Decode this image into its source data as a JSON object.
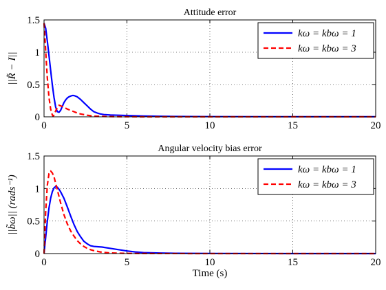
{
  "chart_data": [
    {
      "type": "line",
      "title": "Attitude error",
      "xlabel": "",
      "ylabel": "||R̃ − I||",
      "xlim": [
        0,
        20
      ],
      "ylim": [
        0,
        1.5
      ],
      "xticks": [
        "0",
        "5",
        "10",
        "15",
        "20"
      ],
      "yticks": [
        "0",
        "0.5",
        "1",
        "1.5"
      ],
      "grid": true,
      "legend_position": "top-right",
      "series": [
        {
          "name": "kω = kbω = 1",
          "color": "#0000ff",
          "dash": "solid",
          "x": [
            0,
            0.1,
            0.2,
            0.3,
            0.4,
            0.5,
            0.6,
            0.7,
            0.8,
            0.9,
            1.0,
            1.1,
            1.2,
            1.3,
            1.4,
            1.5,
            1.6,
            1.7,
            1.8,
            1.9,
            2.0,
            2.2,
            2.4,
            2.6,
            2.8,
            3.0,
            3.2,
            3.4,
            3.6,
            4.0,
            4.5,
            5.0,
            6.0,
            7.0,
            8.0,
            10,
            15,
            20
          ],
          "y": [
            1.45,
            1.37,
            1.17,
            0.95,
            0.72,
            0.5,
            0.3,
            0.15,
            0.08,
            0.07,
            0.1,
            0.16,
            0.22,
            0.26,
            0.29,
            0.31,
            0.32,
            0.33,
            0.33,
            0.32,
            0.31,
            0.27,
            0.22,
            0.17,
            0.12,
            0.08,
            0.06,
            0.045,
            0.035,
            0.028,
            0.025,
            0.02,
            0.012,
            0.008,
            0.005,
            0.003,
            0.001,
            0.001
          ]
        },
        {
          "name": "kω = kbω = 3",
          "color": "#ff0000",
          "dash": "dashed",
          "x": [
            0,
            0.05,
            0.1,
            0.15,
            0.2,
            0.3,
            0.4,
            0.5,
            0.55,
            0.6,
            0.7,
            0.8,
            0.9,
            1.0,
            1.2,
            1.4,
            1.6,
            1.8,
            2.0,
            2.2,
            2.4,
            2.6,
            2.8,
            3.0,
            3.5,
            4.0,
            5.0,
            6.0,
            10,
            20
          ],
          "y": [
            1.45,
            1.25,
            1.02,
            0.8,
            0.6,
            0.3,
            0.12,
            0.03,
            0.01,
            0.03,
            0.09,
            0.15,
            0.18,
            0.17,
            0.15,
            0.12,
            0.1,
            0.08,
            0.06,
            0.045,
            0.035,
            0.025,
            0.018,
            0.012,
            0.006,
            0.003,
            0.001,
            0.0,
            0.0,
            0.0
          ]
        }
      ]
    },
    {
      "type": "line",
      "title": "Angular velocity bias error",
      "xlabel": "Time (s)",
      "ylabel": "||b̃ω|| (rads⁻¹)",
      "xlim": [
        0,
        20
      ],
      "ylim": [
        0,
        1.5
      ],
      "xticks": [
        "0",
        "5",
        "10",
        "15",
        "20"
      ],
      "yticks": [
        "0",
        "0.5",
        "1",
        "1.5"
      ],
      "grid": true,
      "legend_position": "top-right",
      "series": [
        {
          "name": "kω = kbω = 1",
          "color": "#0000ff",
          "dash": "solid",
          "x": [
            0,
            0.1,
            0.2,
            0.3,
            0.4,
            0.5,
            0.6,
            0.7,
            0.8,
            0.9,
            1.0,
            1.2,
            1.4,
            1.6,
            1.8,
            2.0,
            2.2,
            2.4,
            2.6,
            2.8,
            3.0,
            3.5,
            4.0,
            4.5,
            5.0,
            5.5,
            6.0,
            7.0,
            8.0,
            10,
            15,
            20
          ],
          "y": [
            0.0,
            0.25,
            0.5,
            0.7,
            0.85,
            0.95,
            1.01,
            1.03,
            1.02,
            0.99,
            0.95,
            0.85,
            0.72,
            0.58,
            0.45,
            0.34,
            0.26,
            0.19,
            0.15,
            0.12,
            0.11,
            0.1,
            0.08,
            0.06,
            0.04,
            0.025,
            0.015,
            0.008,
            0.004,
            0.002,
            0.0,
            0.0
          ]
        },
        {
          "name": "kω = kbω = 3",
          "color": "#ff0000",
          "dash": "dashed",
          "x": [
            0,
            0.1,
            0.2,
            0.3,
            0.4,
            0.5,
            0.6,
            0.8,
            1.0,
            1.2,
            1.4,
            1.6,
            1.8,
            2.0,
            2.2,
            2.4,
            2.6,
            2.8,
            3.0,
            3.5,
            4.0,
            5.0,
            6.0,
            10,
            20
          ],
          "y": [
            0.0,
            0.65,
            1.05,
            1.23,
            1.27,
            1.24,
            1.18,
            0.98,
            0.78,
            0.6,
            0.46,
            0.35,
            0.27,
            0.2,
            0.15,
            0.11,
            0.08,
            0.06,
            0.045,
            0.02,
            0.01,
            0.003,
            0.001,
            0.0,
            0.0
          ]
        }
      ]
    }
  ]
}
